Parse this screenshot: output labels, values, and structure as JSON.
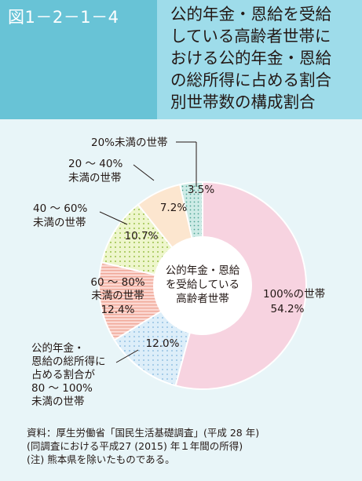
{
  "figure_number": "図1－2－1－4",
  "title_lines": [
    "公的年金・恩給を受給",
    "している高齢者世帯に",
    "おける公的年金・恩給",
    "の総所得に占める割合",
    "別世帯数の構成割合"
  ],
  "center_label_lines": [
    "公的年金・恩給",
    "を受給している",
    "高齢者世帯"
  ],
  "chart_data": {
    "type": "pie",
    "variant": "donut",
    "direction": "clockwise from top",
    "slices": [
      {
        "label_lines": [
          "100%の世帯"
        ],
        "value": 54.2,
        "value_label": "54.2%",
        "color": "#f7d3e0",
        "pattern": "solid"
      },
      {
        "label_lines": [
          "公的年金・",
          "恩給の総所得に",
          "占める割合が",
          "80 ～ 100%",
          "未満の世帯"
        ],
        "value": 12.0,
        "value_label": "12.0%",
        "color": "#ddeef9",
        "pattern": "dots"
      },
      {
        "label_lines": [
          "60 ～ 80%",
          "未満の世帯"
        ],
        "value": 12.4,
        "value_label": "12.4%",
        "color": "#fbd8d2",
        "pattern": "stripes"
      },
      {
        "label_lines": [
          "40 ～ 60%",
          "未満の世帯"
        ],
        "value": 10.7,
        "value_label": "10.7%",
        "color": "#eef6cc",
        "pattern": "dots"
      },
      {
        "label_lines": [
          "20 ～ 40%",
          "未満の世帯"
        ],
        "value": 7.2,
        "value_label": "7.2%",
        "color": "#fce6cf",
        "pattern": "solid"
      },
      {
        "label_lines": [
          "20%未満の世帯"
        ],
        "value": 3.5,
        "value_label": "3.5%",
        "color": "#cdebe6",
        "pattern": "dots"
      }
    ]
  },
  "source_lines": [
    "資料：厚生労働省「国民生活基礎調査」(平成 28 年)",
    "(同調査における平成27 (2015) 年１年間の所得)",
    "(注) 熊本県を除いたものである。"
  ]
}
